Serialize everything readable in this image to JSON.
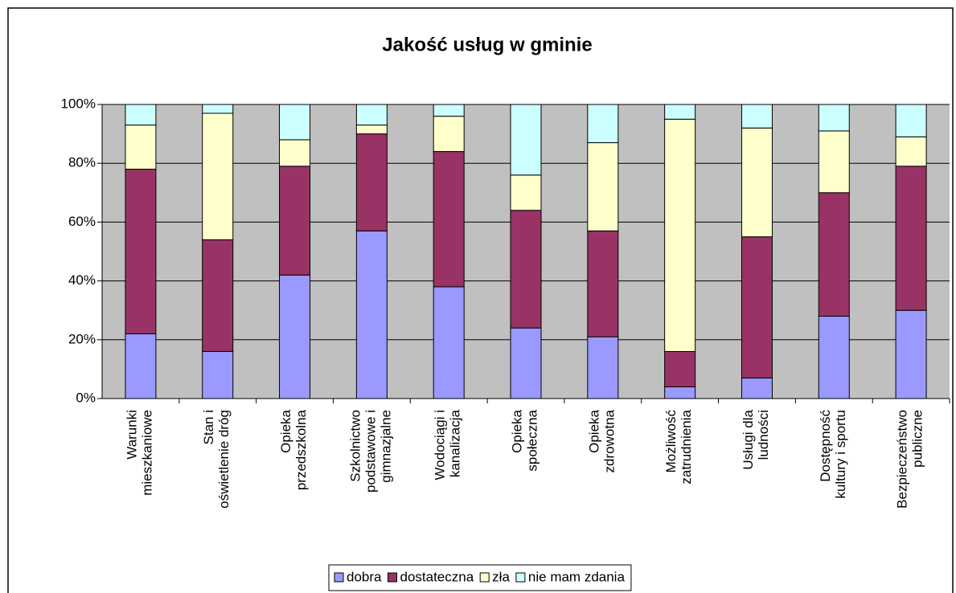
{
  "chart_data": {
    "type": "stacked_bar_100",
    "title": "Jakość usług w gminie",
    "categories": [
      "Warunki\nmieszkaniowe",
      "Stan i\noświetlenie dróg",
      "Opieka\nprzedszkolna",
      "Szkolnictwo\npodstawowe i\ngimnazjalne",
      "Wodociągi i\nkanalizacja",
      "Opieka\nspołeczna",
      "Opieka\nzdrowotna",
      "Możliwość\nzatrudnienia",
      "Usługi dla\nludności",
      "Dostępność\nkultury i sportu",
      "Bezpieczeństwo\npubliczne"
    ],
    "series": [
      {
        "name": "dobra",
        "color": "#9999ff",
        "values": [
          22,
          16,
          42,
          57,
          38,
          24,
          21,
          4,
          7,
          28,
          30
        ]
      },
      {
        "name": "dostateczna",
        "color": "#993366",
        "values": [
          56,
          38,
          37,
          33,
          46,
          40,
          36,
          12,
          48,
          42,
          49
        ]
      },
      {
        "name": "zła",
        "color": "#ffffcc",
        "values": [
          15,
          43,
          9,
          3,
          12,
          12,
          30,
          79,
          37,
          21,
          10
        ]
      },
      {
        "name": "nie mam zdania",
        "color": "#ccffff",
        "values": [
          7,
          3,
          12,
          7,
          4,
          24,
          13,
          5,
          8,
          9,
          11
        ]
      }
    ],
    "ylim": [
      0,
      100
    ],
    "yticks": [
      {
        "value": 0,
        "label": "0%"
      },
      {
        "value": 20,
        "label": "20%"
      },
      {
        "value": 40,
        "label": "40%"
      },
      {
        "value": 60,
        "label": "60%"
      },
      {
        "value": 80,
        "label": "80%"
      },
      {
        "value": 100,
        "label": "100%"
      }
    ],
    "grid": true,
    "legend": "bottom"
  }
}
